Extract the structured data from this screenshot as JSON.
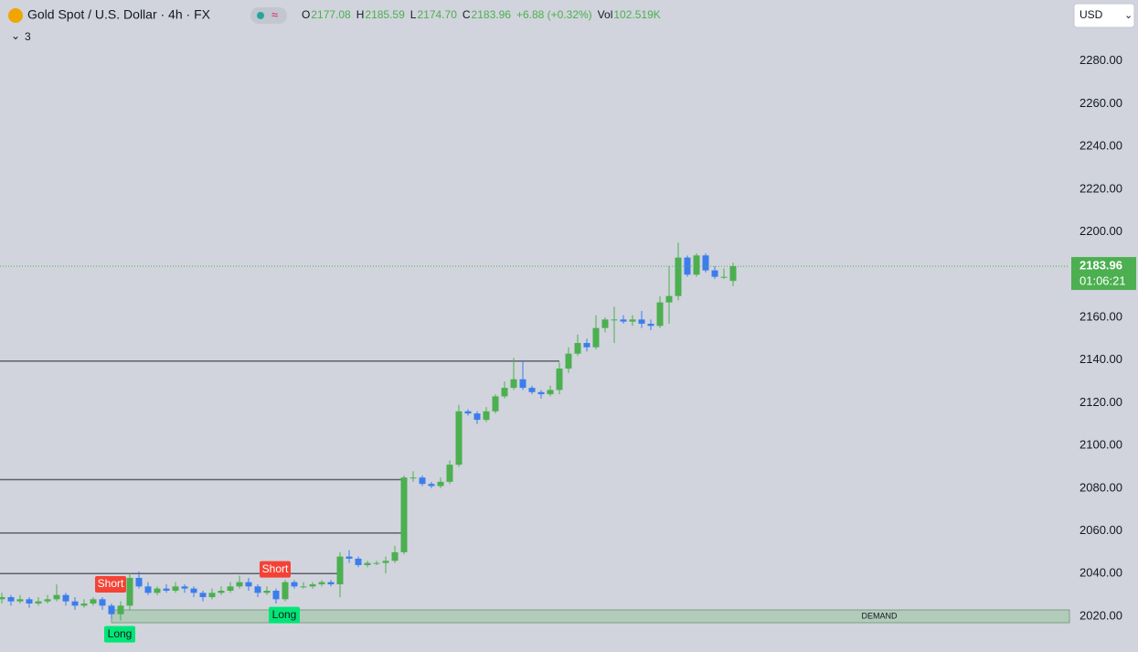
{
  "chart_data": {
    "type": "candlestick",
    "title": "Gold Spot / U.S. Dollar · 4h · FX",
    "indicator_count": "3",
    "currency": "USD",
    "ohlc_legend": [
      {
        "key": "O",
        "text": "2177.08"
      },
      {
        "key": "H",
        "text": "2185.59"
      },
      {
        "key": "L",
        "text": "2174.70"
      },
      {
        "key": "C",
        "text": "2183.96"
      }
    ],
    "change": "+6.88 (+0.32%)",
    "volume": {
      "key": "Vol",
      "text": "102.519K"
    },
    "up_color": "#4caf50",
    "down_color": "#3b7ded",
    "open": [
      2028,
      2029,
      2027,
      2028,
      2026,
      2027,
      2028,
      2030,
      2027,
      2025,
      2026,
      2028,
      2025,
      2021,
      2025,
      2038,
      2034,
      2031,
      2033,
      2032,
      2034,
      2033,
      2031,
      2029,
      2031,
      2032,
      2034,
      2036,
      2034,
      2031,
      2032,
      2028,
      2036,
      2034,
      2034,
      2035,
      2036,
      2035,
      2048,
      2047,
      2044,
      2045,
      2045,
      2046,
      2050,
      2085,
      2085,
      2082,
      2081,
      2083,
      2091,
      2116,
      2115,
      2112,
      2116,
      2123,
      2127,
      2131,
      2127,
      2125,
      2124,
      2126,
      2136,
      2143,
      2148,
      2146,
      2155,
      2159,
      2159,
      2158,
      2159,
      2157,
      2156,
      2167,
      2170,
      2188,
      2180,
      2189,
      2182,
      2179,
      2177.08
    ],
    "high": [
      2031,
      2030,
      2030,
      2029,
      2029,
      2030,
      2035,
      2031,
      2029,
      2028,
      2029,
      2029,
      2026,
      2027,
      2040,
      2041,
      2036,
      2034,
      2035,
      2036,
      2035,
      2034,
      2032,
      2033,
      2034,
      2036,
      2039,
      2038,
      2035,
      2034,
      2033,
      2037,
      2037,
      2036,
      2036,
      2037,
      2037,
      2050,
      2051,
      2048,
      2046,
      2046,
      2048,
      2053,
      2086,
      2088,
      2086,
      2083,
      2085,
      2093,
      2119,
      2117,
      2116,
      2118,
      2124,
      2130,
      2141,
      2140,
      2128,
      2126,
      2128,
      2139,
      2146,
      2152,
      2150,
      2161,
      2160,
      2165,
      2161,
      2161,
      2163,
      2159,
      2170,
      2184,
      2195,
      2189,
      2190,
      2190,
      2184,
      2183,
      2185.59
    ],
    "low": [
      2026,
      2025,
      2026,
      2024,
      2025,
      2026,
      2027,
      2025,
      2023,
      2024,
      2025,
      2023,
      2019,
      2018,
      2023,
      2033,
      2030,
      2030,
      2031,
      2031,
      2031,
      2029,
      2027,
      2028,
      2030,
      2031,
      2033,
      2032,
      2029,
      2030,
      2026,
      2027,
      2033,
      2033,
      2033,
      2034,
      2034,
      2029,
      2045,
      2043,
      2043,
      2044,
      2040,
      2045,
      2049,
      2083,
      2081,
      2080,
      2080,
      2082,
      2090,
      2114,
      2110,
      2111,
      2115,
      2122,
      2126,
      2126,
      2124,
      2122,
      2123,
      2124,
      2134,
      2142,
      2144,
      2145,
      2153,
      2148,
      2157,
      2156,
      2155,
      2154,
      2155,
      2157,
      2168,
      2179,
      2179,
      2181,
      2178,
      2178,
      2174.7
    ],
    "close": [
      2029,
      2027,
      2028,
      2026,
      2027,
      2028,
      2030,
      2027,
      2025,
      2026,
      2028,
      2025,
      2021,
      2025,
      2038,
      2034,
      2031,
      2033,
      2032,
      2034,
      2033,
      2031,
      2029,
      2031,
      2032,
      2034,
      2036,
      2034,
      2031,
      2032,
      2028,
      2036,
      2034,
      2034,
      2035,
      2036,
      2035,
      2048,
      2047,
      2044,
      2045,
      2045,
      2046,
      2050,
      2085,
      2085,
      2082,
      2081,
      2083,
      2091,
      2116,
      2115,
      2112,
      2116,
      2123,
      2127,
      2131,
      2127,
      2125,
      2124,
      2126,
      2136,
      2143,
      2148,
      2146,
      2155,
      2159,
      2159,
      2158,
      2159,
      2157,
      2156,
      2167,
      2170,
      2188,
      2180,
      2189,
      2182,
      2179,
      2179,
      2183.96
    ],
    "last_price": 2183.96,
    "countdown": "01:06:21",
    "levels": [
      2139.5,
      2084,
      2059,
      2040
    ],
    "zone": {
      "label": "DEMAND",
      "low": 2017,
      "high": 2023
    },
    "signals": [
      {
        "label": "Short"
      },
      {
        "label": "Long"
      },
      {
        "label": "Short"
      },
      {
        "label": "Long"
      }
    ],
    "ylim": [
      2003.3,
      2308.6
    ],
    "yticks": [
      {
        "value": 2020,
        "label": "2020.00"
      },
      {
        "value": 2040,
        "label": "2040.00"
      },
      {
        "value": 2060,
        "label": "2060.00"
      },
      {
        "value": 2080,
        "label": "2080.00"
      },
      {
        "value": 2100,
        "label": "2100.00"
      },
      {
        "value": 2120,
        "label": "2120.00"
      },
      {
        "value": 2140,
        "label": "2140.00"
      },
      {
        "value": 2160,
        "label": "2160.00"
      },
      {
        "value": 2180,
        "label": "2180.00"
      },
      {
        "value": 2200,
        "label": "2200.00"
      },
      {
        "value": 2220,
        "label": "2220.00"
      },
      {
        "value": 2240,
        "label": "2240.00"
      },
      {
        "value": 2260,
        "label": "2260.00"
      },
      {
        "value": 2280,
        "label": "2280.00"
      }
    ]
  }
}
